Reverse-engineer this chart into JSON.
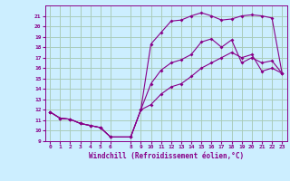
{
  "xlabel": "Windchill (Refroidissement éolien,°C)",
  "bg_color": "#cceeff",
  "grid_color": "#aaccbb",
  "line_color": "#880088",
  "xlim": [
    -0.5,
    23.5
  ],
  "ylim": [
    9,
    22
  ],
  "yticks": [
    9,
    10,
    11,
    12,
    13,
    14,
    15,
    16,
    17,
    18,
    19,
    20,
    21
  ],
  "xticks": [
    0,
    1,
    2,
    3,
    4,
    5,
    6,
    8,
    9,
    10,
    11,
    12,
    13,
    14,
    15,
    16,
    17,
    18,
    19,
    20,
    21,
    22,
    23
  ],
  "line1_x": [
    0,
    1,
    2,
    3,
    4,
    5,
    6,
    8,
    9,
    10,
    11,
    12,
    13,
    14,
    15,
    16,
    17,
    18,
    19,
    20,
    21,
    22,
    23
  ],
  "line1_y": [
    11.8,
    11.2,
    11.1,
    10.7,
    10.5,
    10.3,
    9.4,
    9.4,
    12.0,
    18.3,
    19.4,
    20.5,
    20.6,
    21.0,
    21.3,
    21.0,
    20.6,
    20.7,
    21.0,
    21.1,
    21.0,
    20.8,
    15.5
  ],
  "line2_x": [
    0,
    1,
    2,
    3,
    4,
    5,
    6,
    8,
    9,
    10,
    11,
    12,
    13,
    14,
    15,
    16,
    17,
    18,
    19,
    20,
    21,
    22,
    23
  ],
  "line2_y": [
    11.8,
    11.2,
    11.1,
    10.7,
    10.5,
    10.3,
    9.4,
    9.4,
    12.0,
    14.5,
    15.8,
    16.5,
    16.8,
    17.3,
    18.5,
    18.8,
    18.0,
    18.7,
    16.5,
    17.0,
    16.5,
    16.7,
    15.5
  ],
  "line3_x": [
    0,
    1,
    2,
    3,
    4,
    5,
    6,
    8,
    9,
    10,
    11,
    12,
    13,
    14,
    15,
    16,
    17,
    18,
    19,
    20,
    21,
    22,
    23
  ],
  "line3_y": [
    11.8,
    11.2,
    11.1,
    10.7,
    10.5,
    10.3,
    9.4,
    9.4,
    12.0,
    12.5,
    13.5,
    14.2,
    14.5,
    15.2,
    16.0,
    16.5,
    17.0,
    17.5,
    17.0,
    17.3,
    15.7,
    16.0,
    15.5
  ]
}
